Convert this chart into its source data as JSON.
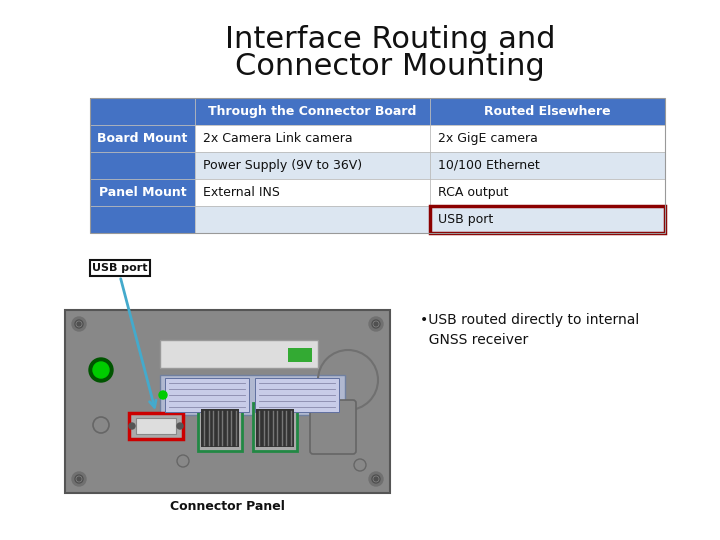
{
  "title_line1": "Interface Routing and",
  "title_line2": "Connector Mounting",
  "title_fontsize": 22,
  "title_color": "#111111",
  "bg_color": "#ffffff",
  "table": {
    "header_bg": "#4472C4",
    "header_fg": "#ffffff",
    "row_bg_alt": "#dce6f1",
    "row_bg_plain": "#ffffff",
    "label_bg": "#4472C4",
    "label_fg": "#ffffff",
    "highlight_color": "#8b0000"
  },
  "annotation_text": "•USB routed directly to internal\n  GNSS receiver",
  "annotation_fontsize": 10,
  "connector_panel_label": "Connector Panel",
  "usb_port_label": "USB port",
  "panel_bg": "#888888",
  "panel_border": "#555555",
  "led_outer": "#005500",
  "led_inner": "#00cc00",
  "slot_bg": "#cccccc",
  "green_ind": "#33aa33",
  "conn_area_bg": "#b0b8d0",
  "conn_area_border": "#7080a0",
  "rj45_border": "#228844",
  "rj45_inner": "#333333",
  "usb_border": "#cc0000",
  "usb_inner_bg": "#dddddd",
  "arrow_color": "#44aacc",
  "screw_outer": "#707070",
  "screw_inner": "#505050",
  "big_circ_color": "#707070",
  "slot2_bg": "#888888",
  "slot2_border": "#666666"
}
